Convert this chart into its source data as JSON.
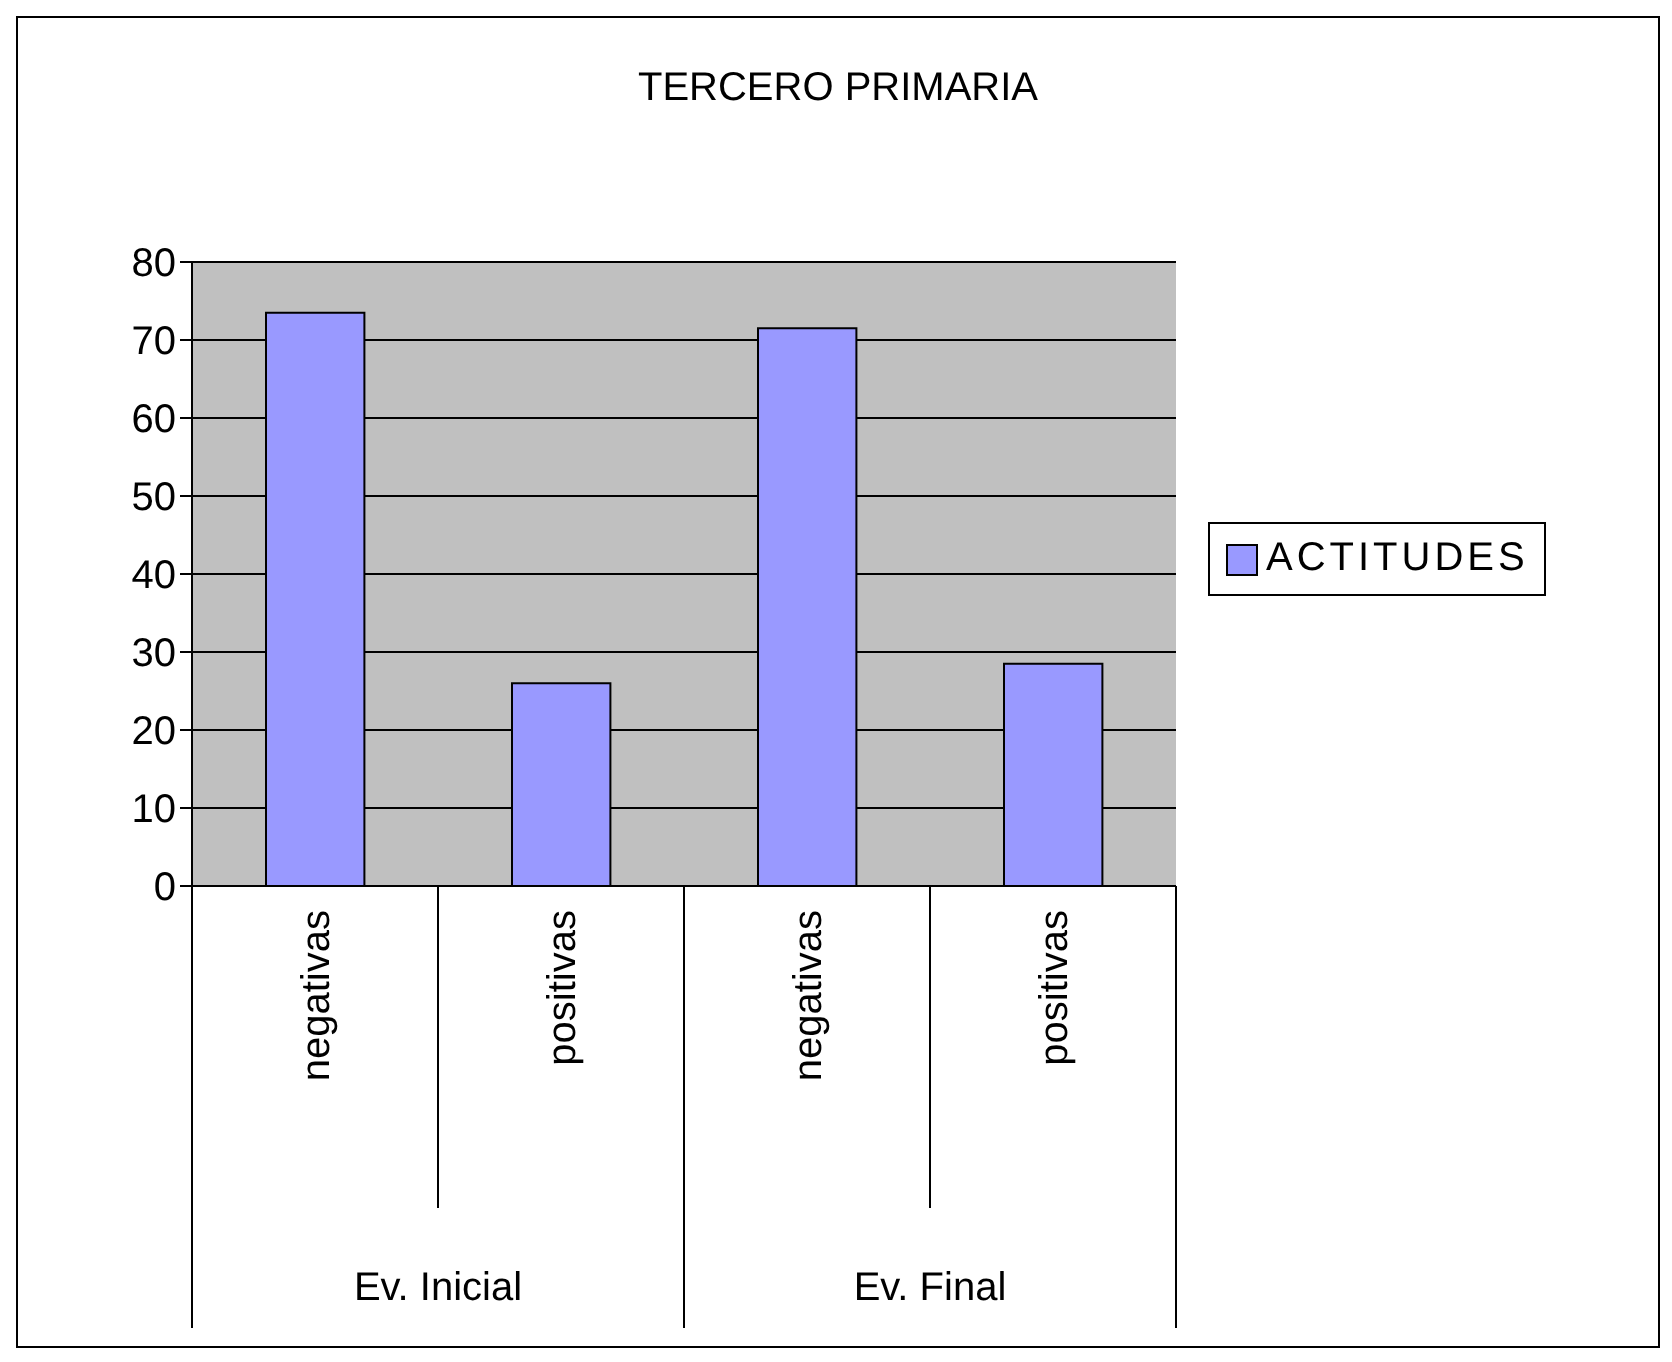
{
  "chart_data": {
    "type": "bar",
    "title": "TERCERO PRIMARIA",
    "categories": [
      "negativas",
      "positivas",
      "negativas",
      "positivas"
    ],
    "series": [
      {
        "name": "ACTITUDES",
        "color": "#9999ff",
        "values": [
          73.5,
          26,
          71.5,
          28.5
        ]
      }
    ],
    "annotations": [
      "Ev. Inicial",
      "Ev. Final"
    ],
    "ylim": [
      0,
      80
    ],
    "yticks": [
      0,
      10,
      20,
      30,
      40,
      50,
      60,
      70,
      80
    ],
    "grid": "y",
    "legend": "right"
  }
}
